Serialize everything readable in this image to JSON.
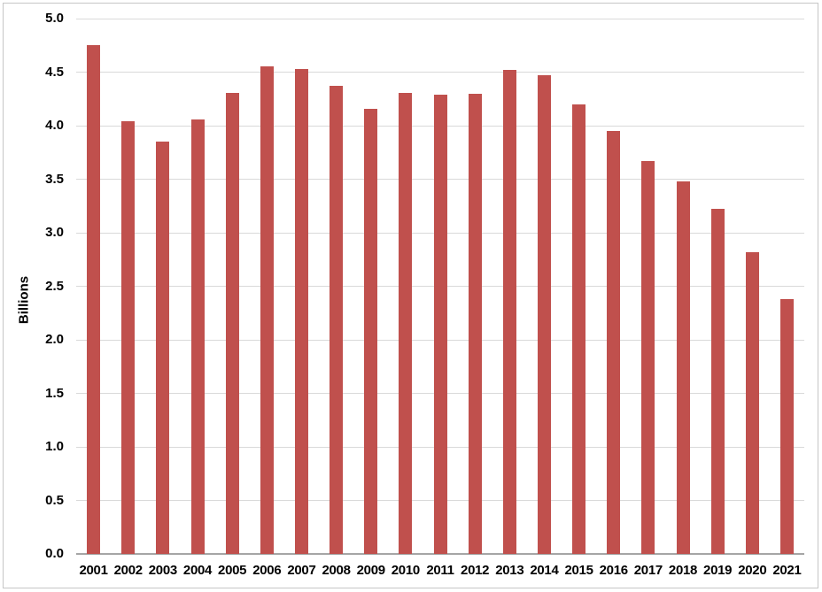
{
  "chart_data": {
    "type": "bar",
    "title": "",
    "categories": [
      "2001",
      "2002",
      "2003",
      "2004",
      "2005",
      "2006",
      "2007",
      "2008",
      "2009",
      "2010",
      "2011",
      "2012",
      "2013",
      "2014",
      "2015",
      "2016",
      "2017",
      "2018",
      "2019",
      "2020",
      "2021"
    ],
    "values": [
      4.75,
      4.04,
      3.85,
      4.06,
      4.31,
      4.55,
      4.53,
      4.37,
      4.16,
      4.31,
      4.29,
      4.3,
      4.52,
      4.47,
      4.2,
      3.95,
      3.67,
      3.48,
      3.22,
      2.82,
      2.38
    ],
    "xlabel": "",
    "ylabel": "Billions",
    "ylim": [
      0.0,
      5.0
    ],
    "ytick_step": 0.5,
    "ytick_labels": [
      "0.0",
      "0.5",
      "1.0",
      "1.5",
      "2.0",
      "2.5",
      "3.0",
      "3.5",
      "4.0",
      "4.5",
      "5.0"
    ],
    "grid": true,
    "legend_position": "none",
    "bar_color": "#c0504d",
    "gridline_color": "#d9d9d9",
    "axis_line_color": "#a6a6a6",
    "tick_label_color": "#000000",
    "frame_border_color": "#c6c6c6"
  }
}
